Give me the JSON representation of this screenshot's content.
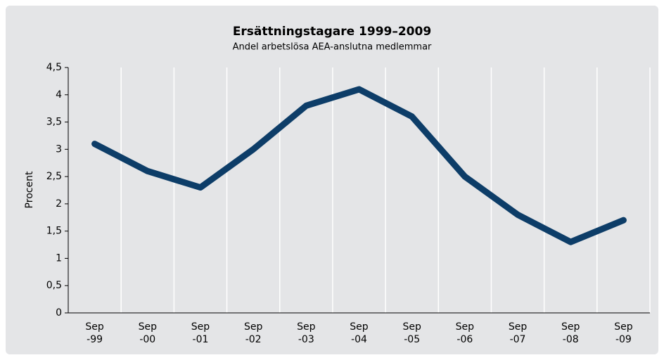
{
  "chart_data": {
    "type": "line",
    "title": "Ersättningstagare 1999–2009",
    "subtitle": "Andel arbetslösa AEA-anslutna medlemmar",
    "y_label": "Procent",
    "categories": [
      "Sep -99",
      "Sep -00",
      "Sep -01",
      "Sep -02",
      "Sep -03",
      "Sep -04",
      "Sep -05",
      "Sep -06",
      "Sep -07",
      "Sep -08",
      "Sep -09"
    ],
    "series": [
      {
        "name": "Andel arbetslösa",
        "color": "#0d3d68",
        "values": [
          3.1,
          2.6,
          2.3,
          3.0,
          3.8,
          4.1,
          3.6,
          2.5,
          1.8,
          1.3,
          1.7
        ]
      }
    ],
    "ylim": [
      0,
      4.5
    ],
    "yticks": [
      0,
      {
        "value": 0.5,
        "label": "0,5"
      },
      1,
      {
        "value": 1.5,
        "label": "1,5"
      },
      2,
      {
        "value": 2.5,
        "label": "2,5"
      },
      3,
      {
        "value": 3.5,
        "label": "3,5"
      },
      4,
      {
        "value": 4.5,
        "label": "4,5"
      }
    ]
  }
}
